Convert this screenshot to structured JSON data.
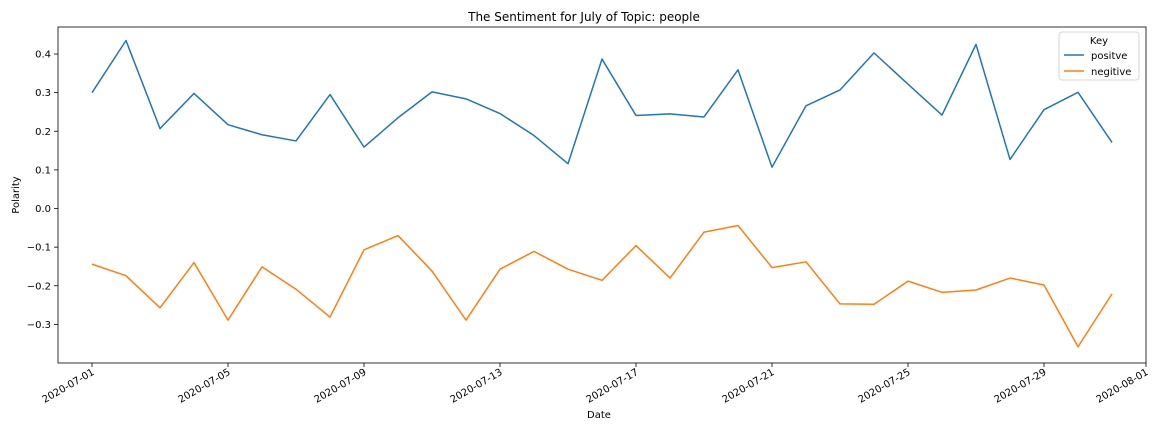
{
  "chart_data": {
    "type": "line",
    "title": "The Sentiment for July of Topic: people",
    "xlabel": "Date",
    "ylabel": "Polarity",
    "x": [
      "2020-07-01",
      "2020-07-02",
      "2020-07-03",
      "2020-07-04",
      "2020-07-05",
      "2020-07-06",
      "2020-07-07",
      "2020-07-08",
      "2020-07-09",
      "2020-07-10",
      "2020-07-11",
      "2020-07-12",
      "2020-07-13",
      "2020-07-14",
      "2020-07-15",
      "2020-07-16",
      "2020-07-17",
      "2020-07-18",
      "2020-07-19",
      "2020-07-20",
      "2020-07-21",
      "2020-07-22",
      "2020-07-23",
      "2020-07-24",
      "2020-07-25",
      "2020-07-26",
      "2020-07-27",
      "2020-07-28",
      "2020-07-29",
      "2020-07-30",
      "2020-07-31"
    ],
    "xticks": [
      "2020-07-01",
      "2020-07-05",
      "2020-07-09",
      "2020-07-13",
      "2020-07-17",
      "2020-07-21",
      "2020-07-25",
      "2020-07-29",
      "2020-08-01"
    ],
    "xlim": [
      "2020-06-30",
      "2020-08-01"
    ],
    "yticks": [
      0.4,
      0.3,
      0.2,
      0.1,
      0.0,
      -0.1,
      -0.2,
      -0.3
    ],
    "ytick_labels": [
      "0.4",
      "0.3",
      "0.2",
      "0.1",
      "0.0",
      "−0.1",
      "−0.2",
      "−0.3"
    ],
    "ylim": [
      -0.4,
      0.47
    ],
    "grid": false,
    "legend": {
      "title": "Key",
      "placement": "top-right"
    },
    "series": [
      {
        "name": "positve",
        "color": "#1f77b4",
        "values": [
          0.3,
          0.435,
          0.207,
          0.298,
          0.217,
          0.191,
          0.175,
          0.295,
          0.159,
          0.235,
          0.302,
          0.284,
          0.246,
          0.189,
          0.116,
          0.387,
          0.241,
          0.245,
          0.237,
          0.359,
          0.107,
          0.266,
          0.307,
          0.403,
          0.322,
          0.242,
          0.425,
          0.127,
          0.256,
          0.301,
          0.171
        ]
      },
      {
        "name": "negitive",
        "color": "#ff7f0e",
        "values": [
          -0.144,
          -0.174,
          -0.257,
          -0.14,
          -0.289,
          -0.151,
          -0.209,
          -0.281,
          -0.107,
          -0.07,
          -0.162,
          -0.289,
          -0.157,
          -0.111,
          -0.157,
          -0.186,
          -0.096,
          -0.18,
          -0.061,
          -0.044,
          -0.153,
          -0.138,
          -0.247,
          -0.248,
          -0.188,
          -0.217,
          -0.211,
          -0.18,
          -0.198,
          -0.358,
          -0.221
        ]
      }
    ]
  }
}
